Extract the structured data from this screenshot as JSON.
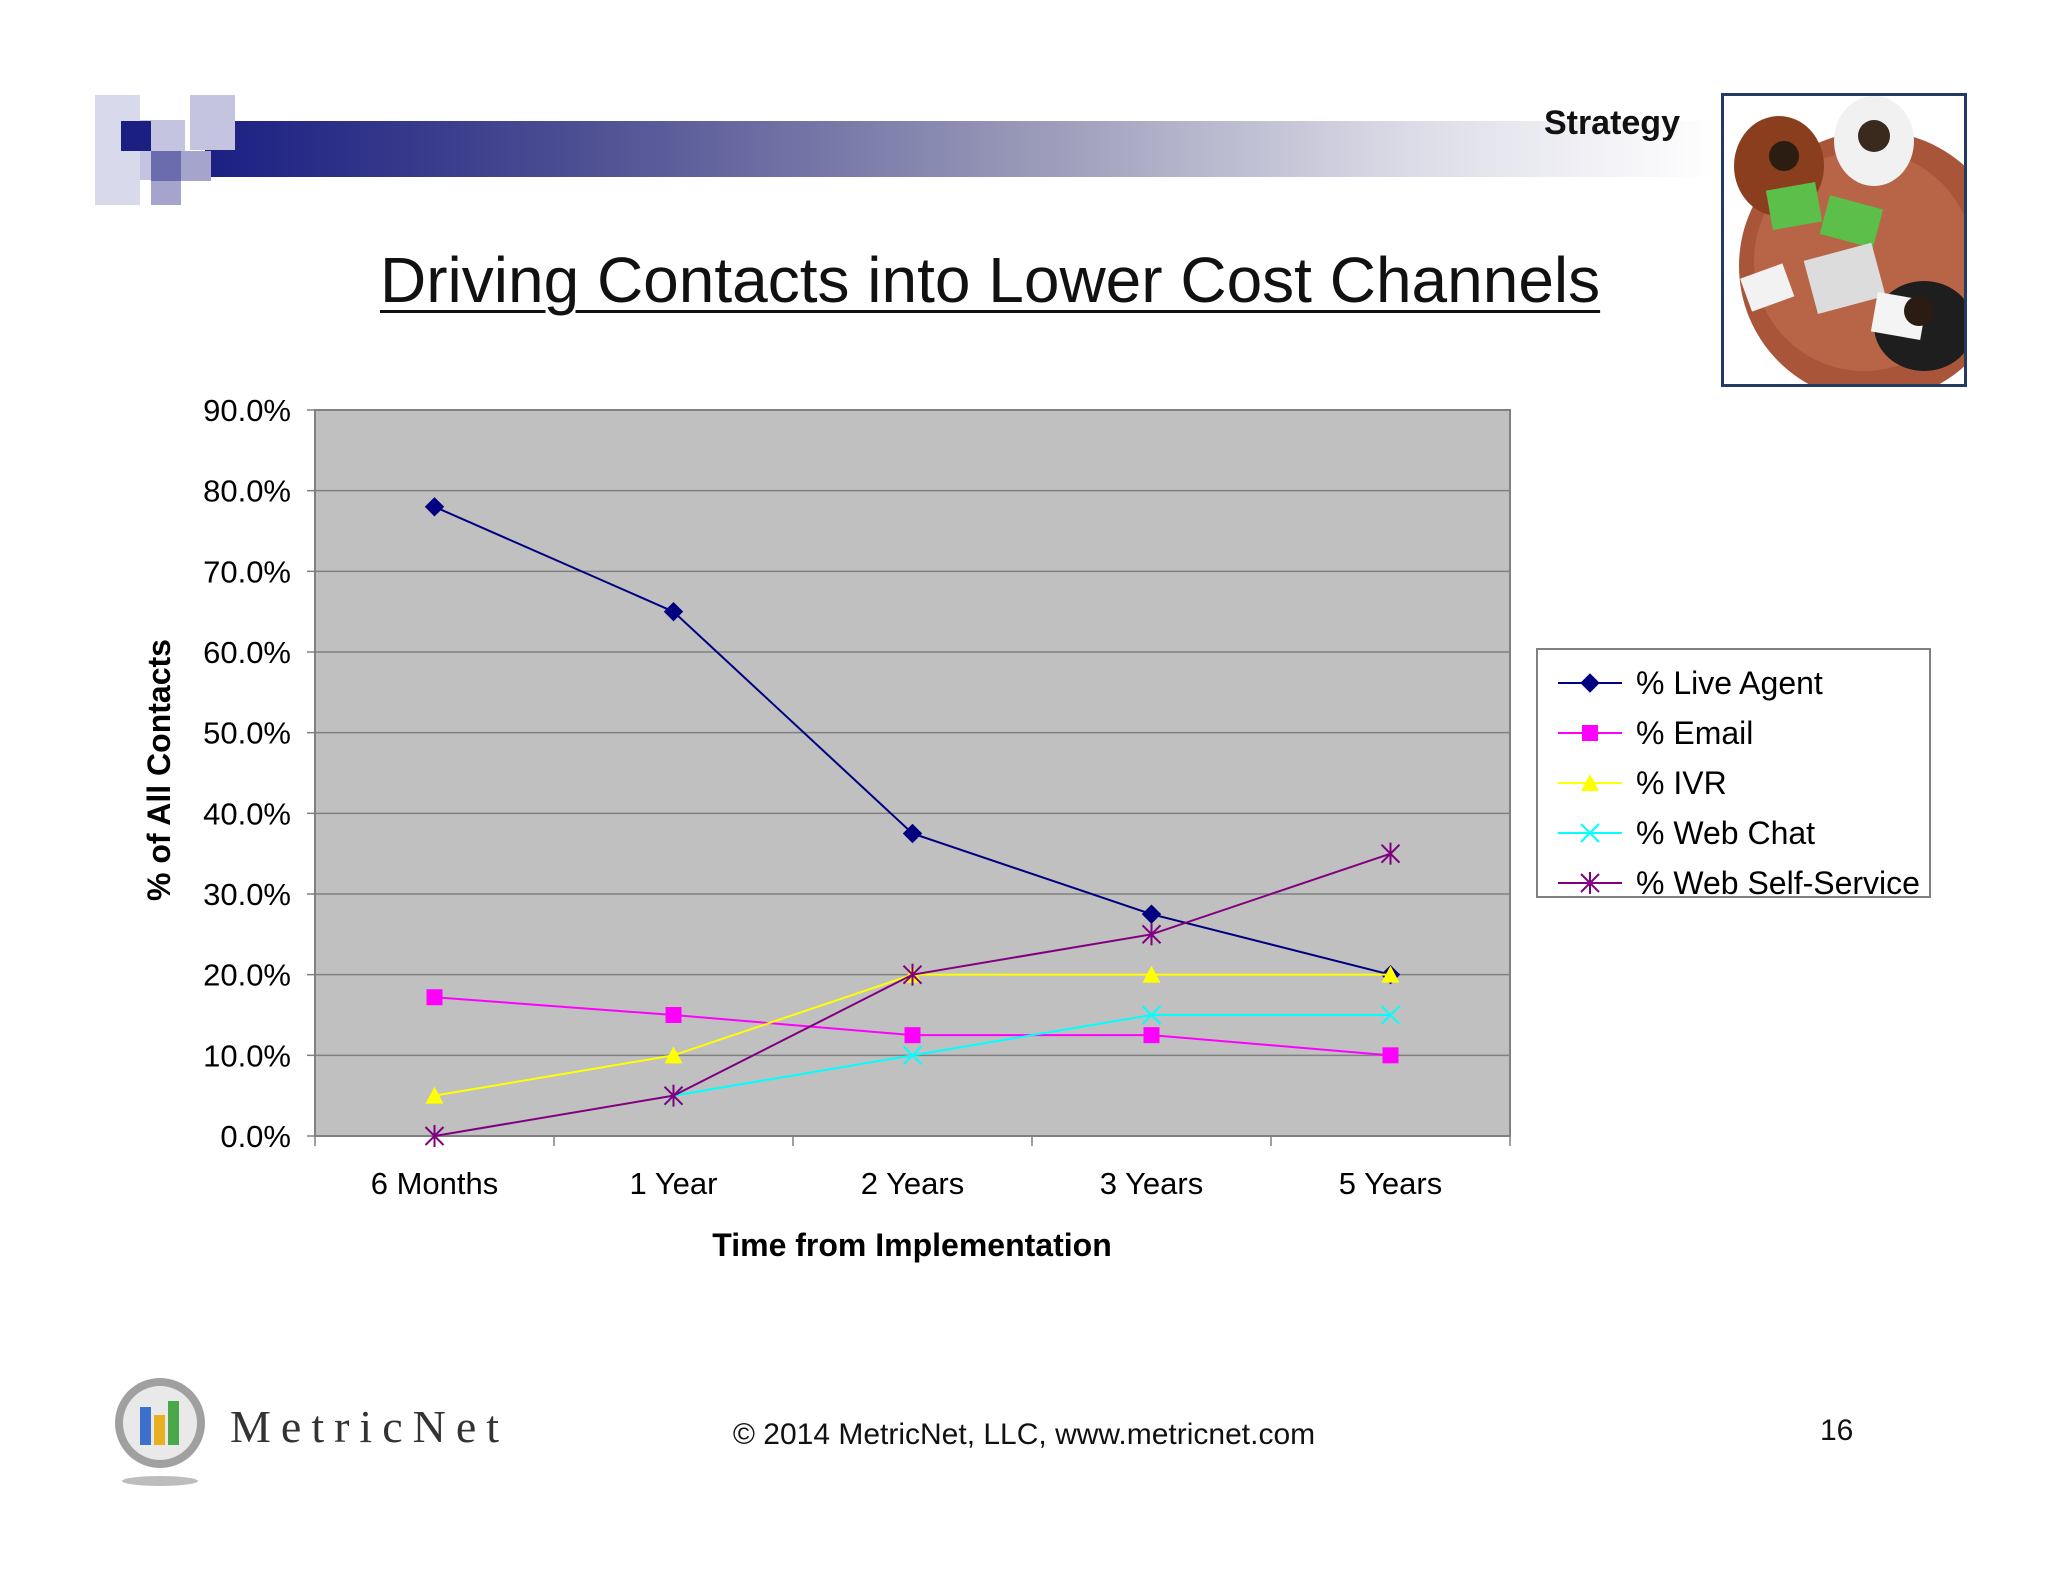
{
  "header": {
    "section_label": "Strategy",
    "accent_color": "#1b1f82"
  },
  "slide": {
    "title": "Driving Contacts into Lower Cost Channels"
  },
  "chart_data": {
    "type": "line",
    "title": "",
    "xlabel": "Time from Implementation",
    "ylabel": "% of All Contacts",
    "categories": [
      "6 Months",
      "1 Year",
      "2 Years",
      "3 Years",
      "5 Years"
    ],
    "ylim": [
      0,
      90
    ],
    "yticks": [
      "0.0%",
      "10.0%",
      "20.0%",
      "30.0%",
      "40.0%",
      "50.0%",
      "60.0%",
      "70.0%",
      "80.0%",
      "90.0%"
    ],
    "grid": true,
    "legend_position": "right",
    "plot_background": "#c0c0c0",
    "series": [
      {
        "name": "% Live Agent",
        "values": [
          78,
          65,
          37.5,
          27.5,
          20
        ],
        "color": "#000080",
        "marker": "diamond"
      },
      {
        "name": "% Email",
        "values": [
          17.2,
          15,
          12.5,
          12.5,
          10
        ],
        "color": "#ff00ff",
        "marker": "square"
      },
      {
        "name": "% IVR",
        "values": [
          5,
          10,
          20,
          20,
          20
        ],
        "color": "#ffff00",
        "marker": "triangle"
      },
      {
        "name": "% Web Chat",
        "values": [
          null,
          5,
          10,
          15,
          15
        ],
        "color": "#00ffff",
        "marker": "x"
      },
      {
        "name": "% Web Self-Service",
        "values": [
          0,
          5,
          20,
          25,
          35
        ],
        "color": "#800080",
        "marker": "star"
      }
    ]
  },
  "footer": {
    "brand": "MetricNet",
    "copyright": "© 2014 MetricNet, LLC, www.metricnet.com",
    "page_number": "16"
  }
}
